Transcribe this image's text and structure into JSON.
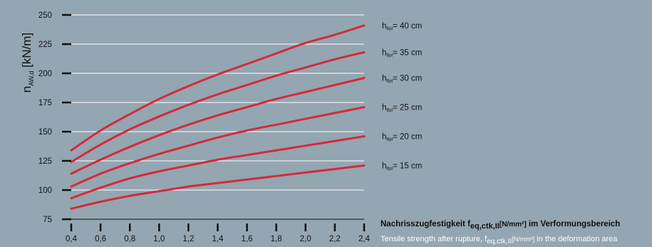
{
  "chart_data": {
    "type": "line",
    "ylabel": {
      "main": "n",
      "sub": "AW,d",
      "unit": " [kN/m]"
    },
    "xlabel_de": {
      "text": "Nachrisszugfestigkeit f",
      "sub": "eq,ctk,II",
      "unit": "[N/mm²]",
      "tail": " im Verformungsbereich"
    },
    "xlabel_en": {
      "text": "Tensile strength after rupture, f",
      "sub": "eq,ctk,II",
      "unit": "[N/mm²]",
      "tail": " in the deformation area"
    },
    "xlim": [
      0.4,
      2.4
    ],
    "ylim": [
      75,
      250
    ],
    "x_ticks": [
      0.4,
      0.6,
      0.8,
      1.0,
      1.2,
      1.4,
      1.6,
      1.8,
      2.0,
      2.2,
      2.4
    ],
    "x_tick_labels": [
      "0,4",
      "0,6",
      "0,8",
      "1,0",
      "1,2",
      "1,4",
      "1,6",
      "1,8",
      "2,0",
      "2,2",
      "2,4"
    ],
    "y_ticks": [
      75,
      100,
      125,
      150,
      175,
      200,
      225,
      250
    ],
    "y_tick_labels": [
      "75",
      "100",
      "125",
      "150",
      "175",
      "200",
      "225",
      "250"
    ],
    "grid": true,
    "x": [
      0.4,
      0.6,
      0.8,
      1.0,
      1.2,
      1.4,
      1.6,
      1.8,
      2.0,
      2.2,
      2.4
    ],
    "series": [
      {
        "label_pre": "h",
        "label_sub": "Bpl",
        "label_post": "= 40 cm",
        "values": [
          134,
          151,
          165,
          178,
          189,
          199,
          208,
          217,
          226,
          233,
          241
        ]
      },
      {
        "label_pre": "h",
        "label_sub": "Bpl",
        "label_post": "= 35 cm",
        "values": [
          124,
          139,
          152,
          163,
          173,
          182,
          190,
          198,
          205,
          212,
          218
        ]
      },
      {
        "label_pre": "h",
        "label_sub": "Bpl",
        "label_post": "= 30 cm",
        "values": [
          114,
          126,
          137,
          147,
          156,
          164,
          171,
          178,
          184,
          190,
          196
        ]
      },
      {
        "label_pre": "h",
        "label_sub": "Bpl",
        "label_post": "= 25 cm",
        "values": [
          103,
          114,
          123,
          131,
          138,
          145,
          151,
          156,
          161,
          166,
          171
        ]
      },
      {
        "label_pre": "h",
        "label_sub": "Bpl",
        "label_post": "= 20 cm",
        "values": [
          93,
          102,
          110,
          116,
          121,
          126,
          130,
          134,
          138,
          142,
          146
        ]
      },
      {
        "label_pre": "h",
        "label_sub": "Bpl",
        "label_post": "= 15 cm",
        "values": [
          84,
          90,
          95,
          99,
          103,
          106,
          109,
          112,
          115,
          118,
          121
        ]
      }
    ],
    "colors": {
      "background": "#94a6b1",
      "line": "#d42a3a",
      "grid": "#ffffff",
      "axis": "#111111",
      "text": "#111111",
      "caption_en": "#ffffff"
    }
  }
}
